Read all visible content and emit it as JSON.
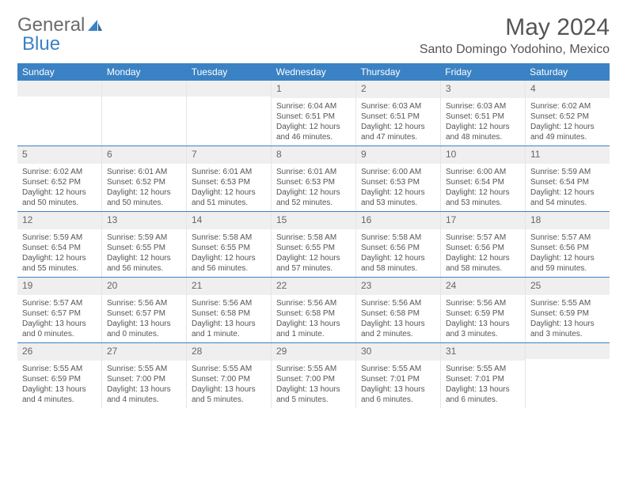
{
  "logo": {
    "text1": "General",
    "text2": "Blue"
  },
  "title": "May 2024",
  "location": "Santo Domingo Yodohino, Mexico",
  "colors": {
    "header_bg": "#3b82c4",
    "header_text": "#ffffff",
    "daynum_bg": "#efefef",
    "text": "#555555",
    "border_row": "#3b82c4"
  },
  "day_labels": [
    "Sunday",
    "Monday",
    "Tuesday",
    "Wednesday",
    "Thursday",
    "Friday",
    "Saturday"
  ],
  "weeks": [
    [
      {
        "day": "",
        "sunrise": "",
        "sunset": "",
        "daylight": ""
      },
      {
        "day": "",
        "sunrise": "",
        "sunset": "",
        "daylight": ""
      },
      {
        "day": "",
        "sunrise": "",
        "sunset": "",
        "daylight": ""
      },
      {
        "day": "1",
        "sunrise": "Sunrise: 6:04 AM",
        "sunset": "Sunset: 6:51 PM",
        "daylight": "Daylight: 12 hours and 46 minutes."
      },
      {
        "day": "2",
        "sunrise": "Sunrise: 6:03 AM",
        "sunset": "Sunset: 6:51 PM",
        "daylight": "Daylight: 12 hours and 47 minutes."
      },
      {
        "day": "3",
        "sunrise": "Sunrise: 6:03 AM",
        "sunset": "Sunset: 6:51 PM",
        "daylight": "Daylight: 12 hours and 48 minutes."
      },
      {
        "day": "4",
        "sunrise": "Sunrise: 6:02 AM",
        "sunset": "Sunset: 6:52 PM",
        "daylight": "Daylight: 12 hours and 49 minutes."
      }
    ],
    [
      {
        "day": "5",
        "sunrise": "Sunrise: 6:02 AM",
        "sunset": "Sunset: 6:52 PM",
        "daylight": "Daylight: 12 hours and 50 minutes."
      },
      {
        "day": "6",
        "sunrise": "Sunrise: 6:01 AM",
        "sunset": "Sunset: 6:52 PM",
        "daylight": "Daylight: 12 hours and 50 minutes."
      },
      {
        "day": "7",
        "sunrise": "Sunrise: 6:01 AM",
        "sunset": "Sunset: 6:53 PM",
        "daylight": "Daylight: 12 hours and 51 minutes."
      },
      {
        "day": "8",
        "sunrise": "Sunrise: 6:01 AM",
        "sunset": "Sunset: 6:53 PM",
        "daylight": "Daylight: 12 hours and 52 minutes."
      },
      {
        "day": "9",
        "sunrise": "Sunrise: 6:00 AM",
        "sunset": "Sunset: 6:53 PM",
        "daylight": "Daylight: 12 hours and 53 minutes."
      },
      {
        "day": "10",
        "sunrise": "Sunrise: 6:00 AM",
        "sunset": "Sunset: 6:54 PM",
        "daylight": "Daylight: 12 hours and 53 minutes."
      },
      {
        "day": "11",
        "sunrise": "Sunrise: 5:59 AM",
        "sunset": "Sunset: 6:54 PM",
        "daylight": "Daylight: 12 hours and 54 minutes."
      }
    ],
    [
      {
        "day": "12",
        "sunrise": "Sunrise: 5:59 AM",
        "sunset": "Sunset: 6:54 PM",
        "daylight": "Daylight: 12 hours and 55 minutes."
      },
      {
        "day": "13",
        "sunrise": "Sunrise: 5:59 AM",
        "sunset": "Sunset: 6:55 PM",
        "daylight": "Daylight: 12 hours and 56 minutes."
      },
      {
        "day": "14",
        "sunrise": "Sunrise: 5:58 AM",
        "sunset": "Sunset: 6:55 PM",
        "daylight": "Daylight: 12 hours and 56 minutes."
      },
      {
        "day": "15",
        "sunrise": "Sunrise: 5:58 AM",
        "sunset": "Sunset: 6:55 PM",
        "daylight": "Daylight: 12 hours and 57 minutes."
      },
      {
        "day": "16",
        "sunrise": "Sunrise: 5:58 AM",
        "sunset": "Sunset: 6:56 PM",
        "daylight": "Daylight: 12 hours and 58 minutes."
      },
      {
        "day": "17",
        "sunrise": "Sunrise: 5:57 AM",
        "sunset": "Sunset: 6:56 PM",
        "daylight": "Daylight: 12 hours and 58 minutes."
      },
      {
        "day": "18",
        "sunrise": "Sunrise: 5:57 AM",
        "sunset": "Sunset: 6:56 PM",
        "daylight": "Daylight: 12 hours and 59 minutes."
      }
    ],
    [
      {
        "day": "19",
        "sunrise": "Sunrise: 5:57 AM",
        "sunset": "Sunset: 6:57 PM",
        "daylight": "Daylight: 13 hours and 0 minutes."
      },
      {
        "day": "20",
        "sunrise": "Sunrise: 5:56 AM",
        "sunset": "Sunset: 6:57 PM",
        "daylight": "Daylight: 13 hours and 0 minutes."
      },
      {
        "day": "21",
        "sunrise": "Sunrise: 5:56 AM",
        "sunset": "Sunset: 6:58 PM",
        "daylight": "Daylight: 13 hours and 1 minute."
      },
      {
        "day": "22",
        "sunrise": "Sunrise: 5:56 AM",
        "sunset": "Sunset: 6:58 PM",
        "daylight": "Daylight: 13 hours and 1 minute."
      },
      {
        "day": "23",
        "sunrise": "Sunrise: 5:56 AM",
        "sunset": "Sunset: 6:58 PM",
        "daylight": "Daylight: 13 hours and 2 minutes."
      },
      {
        "day": "24",
        "sunrise": "Sunrise: 5:56 AM",
        "sunset": "Sunset: 6:59 PM",
        "daylight": "Daylight: 13 hours and 3 minutes."
      },
      {
        "day": "25",
        "sunrise": "Sunrise: 5:55 AM",
        "sunset": "Sunset: 6:59 PM",
        "daylight": "Daylight: 13 hours and 3 minutes."
      }
    ],
    [
      {
        "day": "26",
        "sunrise": "Sunrise: 5:55 AM",
        "sunset": "Sunset: 6:59 PM",
        "daylight": "Daylight: 13 hours and 4 minutes."
      },
      {
        "day": "27",
        "sunrise": "Sunrise: 5:55 AM",
        "sunset": "Sunset: 7:00 PM",
        "daylight": "Daylight: 13 hours and 4 minutes."
      },
      {
        "day": "28",
        "sunrise": "Sunrise: 5:55 AM",
        "sunset": "Sunset: 7:00 PM",
        "daylight": "Daylight: 13 hours and 5 minutes."
      },
      {
        "day": "29",
        "sunrise": "Sunrise: 5:55 AM",
        "sunset": "Sunset: 7:00 PM",
        "daylight": "Daylight: 13 hours and 5 minutes."
      },
      {
        "day": "30",
        "sunrise": "Sunrise: 5:55 AM",
        "sunset": "Sunset: 7:01 PM",
        "daylight": "Daylight: 13 hours and 6 minutes."
      },
      {
        "day": "31",
        "sunrise": "Sunrise: 5:55 AM",
        "sunset": "Sunset: 7:01 PM",
        "daylight": "Daylight: 13 hours and 6 minutes."
      },
      {
        "day": "",
        "sunrise": "",
        "sunset": "",
        "daylight": ""
      }
    ]
  ]
}
